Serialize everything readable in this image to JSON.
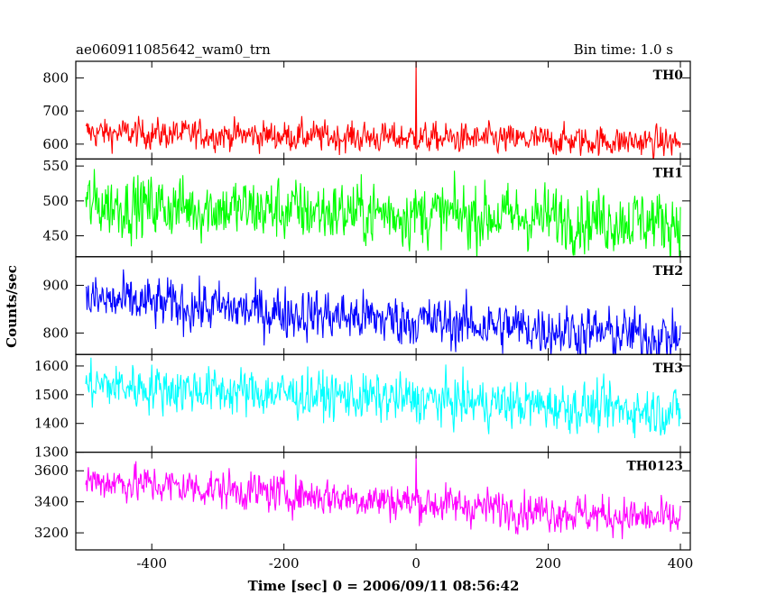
{
  "header": {
    "left": "ae060911085642_wam0_trn",
    "right": "Bin time: 1.0 s"
  },
  "chart_data": {
    "type": "line",
    "xlabel": "Time [sec] 0 = 2006/09/11 08:56:42",
    "ylabel": "Counts/sec",
    "xlim": [
      -515,
      415
    ],
    "x_ticks": [
      -400,
      -200,
      0,
      200,
      400
    ],
    "x_range": [
      -500,
      400
    ],
    "bin_time_s": 1.0,
    "panels": [
      {
        "name": "TH0",
        "color": "#ff0000",
        "ylim": [
          555,
          850
        ],
        "y_ticks": [
          600,
          700,
          800
        ],
        "start_mean": 635,
        "end_mean": 605,
        "noise": 22,
        "spikes": [
          {
            "x": 0,
            "y": 850
          }
        ]
      },
      {
        "name": "TH1",
        "color": "#00ff00",
        "ylim": [
          420,
          560
        ],
        "y_ticks": [
          450,
          500,
          550
        ],
        "start_mean": 495,
        "end_mean": 470,
        "noise": 22,
        "spikes": []
      },
      {
        "name": "TH2",
        "color": "#0000ff",
        "ylim": [
          755,
          960
        ],
        "y_ticks": [
          800,
          900
        ],
        "start_mean": 870,
        "end_mean": 790,
        "noise": 26,
        "spikes": []
      },
      {
        "name": "TH3",
        "color": "#00ffff",
        "ylim": [
          1300,
          1640
        ],
        "y_ticks": [
          1300,
          1400,
          1500,
          1600
        ],
        "start_mean": 1535,
        "end_mean": 1440,
        "noise": 40,
        "spikes": []
      },
      {
        "name": "TH0123",
        "color": "#ff00ff",
        "ylim": [
          3090,
          3720
        ],
        "y_ticks": [
          3200,
          3400,
          3600
        ],
        "start_mean": 3540,
        "end_mean": 3280,
        "noise": 60,
        "spikes": [
          {
            "x": 0,
            "y": 3700
          }
        ]
      }
    ]
  }
}
